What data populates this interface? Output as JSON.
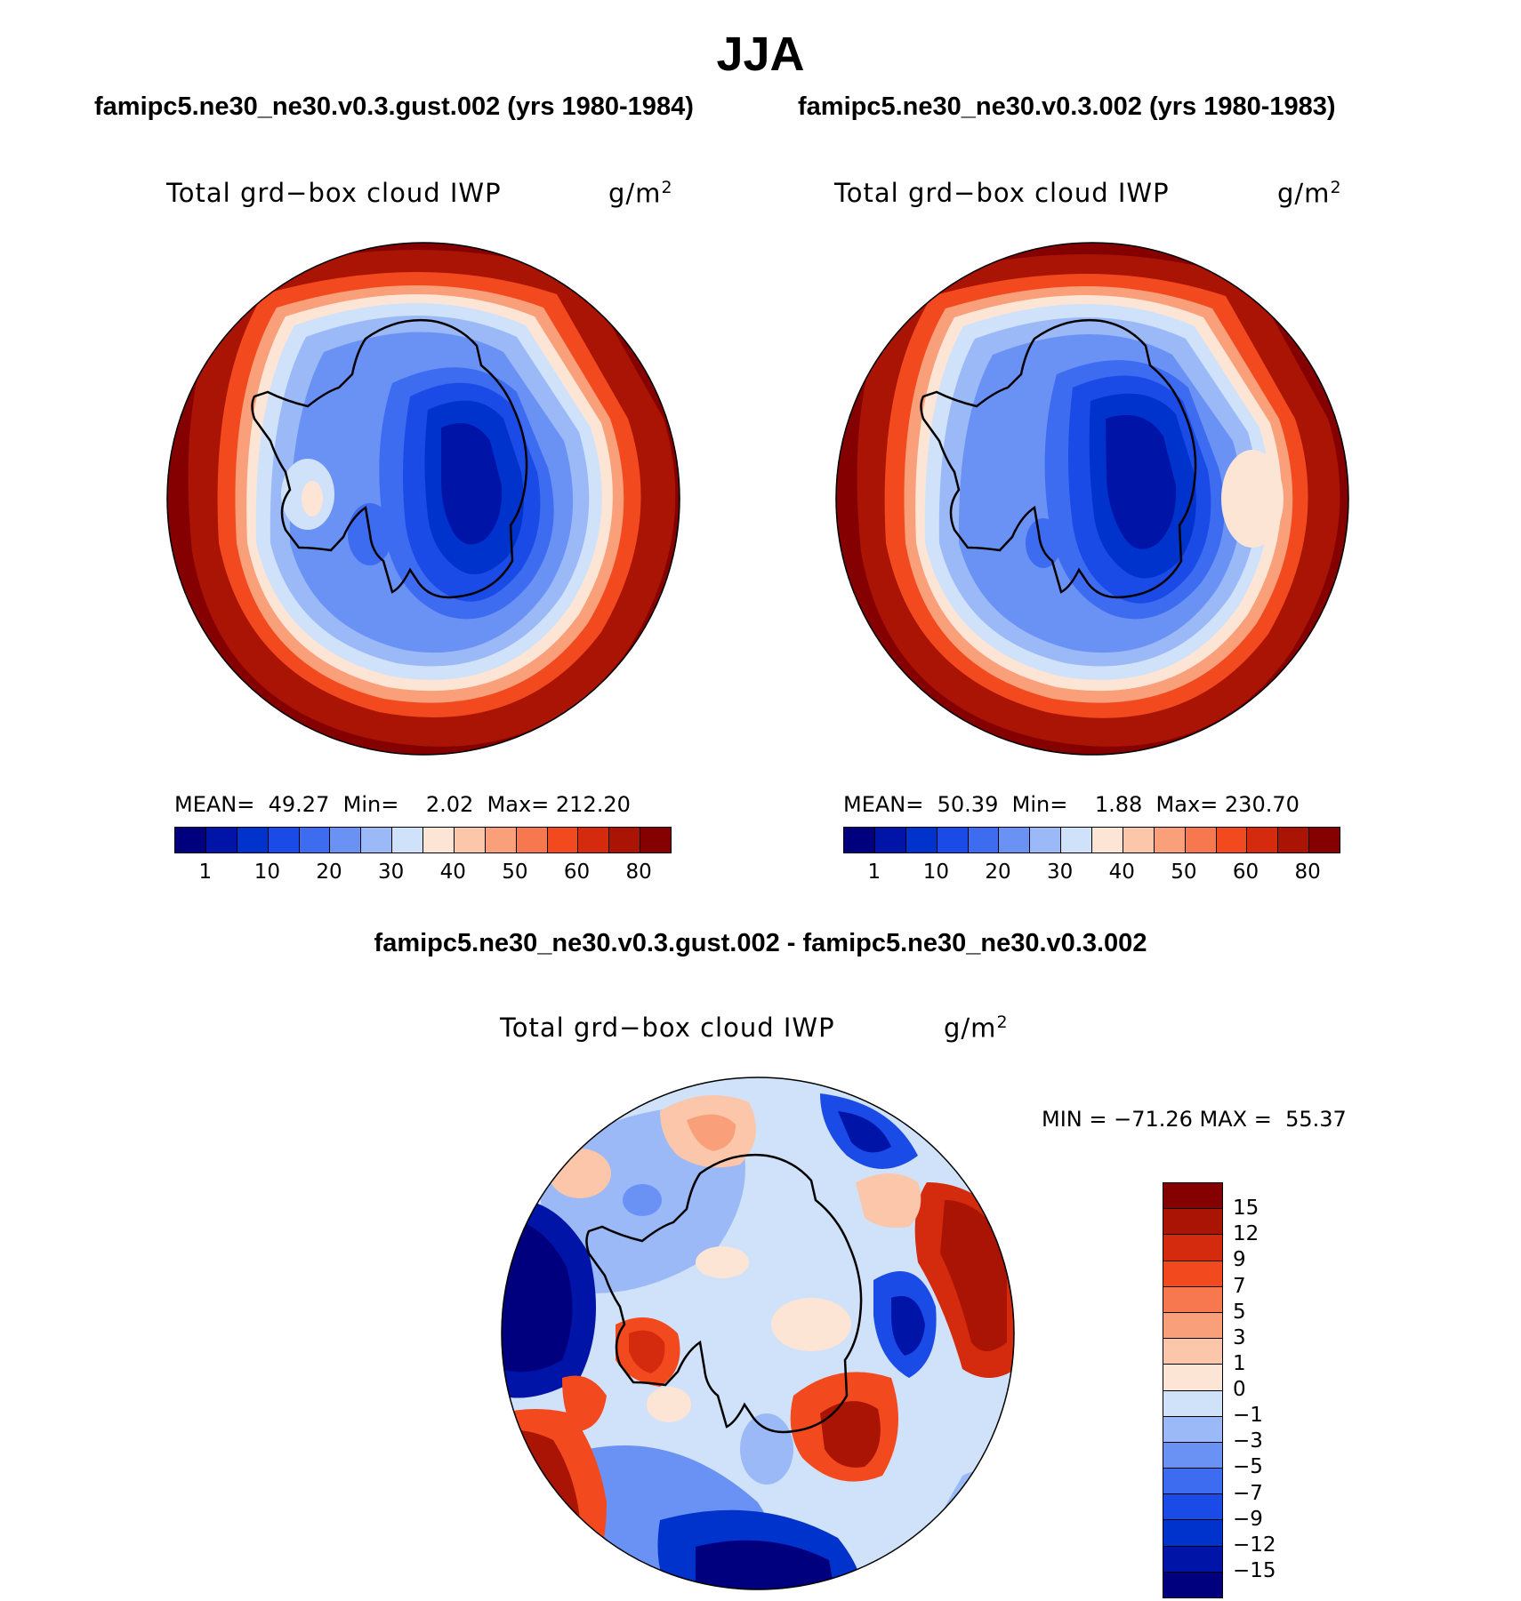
{
  "figure": {
    "season_title": "JJA"
  },
  "panels": [
    {
      "id": "test",
      "case_title": "famipc5.ne30_ne30.v0.3.gust.002 (yrs 1980-1984)",
      "variable": "Total grd−box cloud IWP",
      "unit_base": "g/m",
      "unit_exp": "2",
      "stats": {
        "mean_label": "MEAN=",
        "mean": "49.27",
        "min_label": "Min=",
        "min": "2.02",
        "max_label": "Max=",
        "max": "212.20"
      }
    },
    {
      "id": "control",
      "case_title": "famipc5.ne30_ne30.v0.3.002 (yrs 1980-1983)",
      "variable": "Total grd−box cloud IWP",
      "unit_base": "g/m",
      "unit_exp": "2",
      "stats": {
        "mean_label": "MEAN=",
        "mean": "50.39",
        "min_label": "Min=",
        "min": "1.88",
        "max_label": "Max=",
        "max": "230.70"
      }
    }
  ],
  "difference": {
    "title": "famipc5.ne30_ne30.v0.3.gust.002 - famipc5.ne30_ne30.v0.3.002",
    "variable": "Total grd−box cloud IWP",
    "unit_base": "g/m",
    "unit_exp": "2",
    "minmax": "MIN = −71.26 MAX =  55.37"
  },
  "colorbar_field": {
    "colors": [
      "#00007f",
      "#0014a8",
      "#0033cc",
      "#1a4be6",
      "#3d6cf0",
      "#6a92f5",
      "#9bb9f7",
      "#cfe2f9",
      "#fde5d6",
      "#fcc6aa",
      "#f99f7a",
      "#f7784e",
      "#f24a1e",
      "#d42a0e",
      "#aa1404",
      "#850000"
    ],
    "tick_labels": [
      "1",
      "10",
      "20",
      "30",
      "40",
      "50",
      "60",
      "80"
    ]
  },
  "colorbar_diff": {
    "colors_top_to_bottom": [
      "#850000",
      "#aa1404",
      "#d42a0e",
      "#f24a1e",
      "#f7784e",
      "#f99f7a",
      "#fcc6aa",
      "#fde5d6",
      "#cfe2f9",
      "#9bb9f7",
      "#6a92f5",
      "#3d6cf0",
      "#1a4be6",
      "#0033cc",
      "#0014a8",
      "#00007f"
    ],
    "tick_labels": [
      "15",
      "12",
      "9",
      "7",
      "5",
      "3",
      "1",
      "0",
      "−1",
      "−3",
      "−5",
      "−7",
      "−9",
      "−12",
      "−15"
    ]
  },
  "map_legend": {
    "projection": "South polar stereographic",
    "region": "Antarctica"
  }
}
